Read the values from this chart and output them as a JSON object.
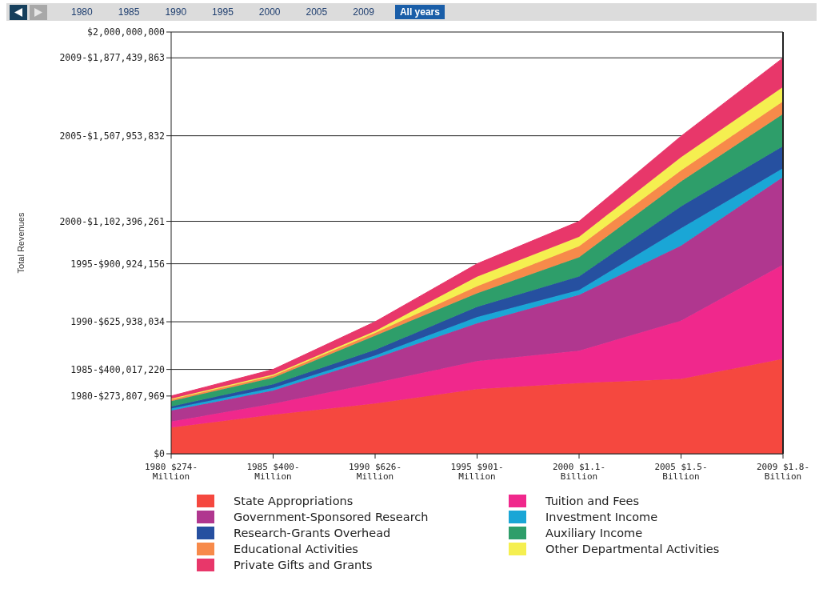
{
  "chart_data": {
    "type": "area",
    "stacked": true,
    "ylabel": "Total Revenues",
    "categories": [
      "1980 $274-Million",
      "1985 $400-Million",
      "1990 $626-Million",
      "1995 $901-Million",
      "2000 $1.1-Billion",
      "2005 $1.5-Billion",
      "2009 $1.8-Billion"
    ],
    "series": [
      {
        "name": "State Appropriations",
        "color": "#f5483f",
        "values": [
          124000000,
          185000000,
          238000000,
          306000000,
          335000000,
          355000000,
          450000000
        ]
      },
      {
        "name": "Tuition and Fees",
        "color": "#f0288c",
        "values": [
          29000000,
          52000000,
          98000000,
          133000000,
          154000000,
          276000000,
          447000000
        ]
      },
      {
        "name": "Government-Sponsored Research",
        "color": "#b0378f",
        "values": [
          52000000,
          63000000,
          117000000,
          180000000,
          264000000,
          356000000,
          415000000
        ]
      },
      {
        "name": "Investment Income",
        "color": "#1aa6d6",
        "values": [
          9000000,
          12000000,
          13000000,
          29000000,
          23000000,
          82000000,
          42000000
        ]
      },
      {
        "name": "Research-Grants Overhead",
        "color": "#2650a0",
        "values": [
          10000000,
          17000000,
          26000000,
          48000000,
          65000000,
          104000000,
          104000000
        ]
      },
      {
        "name": "Auxiliary Income",
        "color": "#2e9e6a",
        "values": [
          26000000,
          32000000,
          68000000,
          65000000,
          91000000,
          118000000,
          153000000
        ]
      },
      {
        "name": "Educational Activities",
        "color": "#f78a4a",
        "values": [
          7000000,
          9000000,
          13000000,
          33000000,
          52000000,
          52000000,
          60000000
        ]
      },
      {
        "name": "Other Departmental Activities",
        "color": "#f5ef50",
        "values": [
          4000000,
          6000000,
          9000000,
          46000000,
          44000000,
          63000000,
          68000000
        ]
      },
      {
        "name": "Private Gifts and Grants",
        "color": "#e8376a",
        "values": [
          13000000,
          24000000,
          44000000,
          61000000,
          74000000,
          100000000,
          138000000
        ]
      }
    ],
    "ylim": [
      0,
      2000000000
    ],
    "yticks": [
      {
        "value": 0,
        "label": "$0"
      },
      {
        "value": 273807969,
        "label": "1980-$273,807,969"
      },
      {
        "value": 400017220,
        "label": "1985-$400,017,220"
      },
      {
        "value": 625938034,
        "label": "1990-$625,938,034"
      },
      {
        "value": 900924156,
        "label": "1995-$900,924,156"
      },
      {
        "value": 1102396261,
        "label": "2000-$1,102,396,261"
      },
      {
        "value": 1507953832,
        "label": "2005-$1,507,953,832"
      },
      {
        "value": 1877439863,
        "label": "2009-$1,877,439,863"
      },
      {
        "value": 2000000000,
        "label": "$2,000,000,000"
      }
    ],
    "grid": "y",
    "legend": "bottom",
    "annotations": [
      "1980",
      "1985",
      "1990",
      "1995",
      "2000",
      "2005",
      "2009",
      "All years"
    ]
  }
}
